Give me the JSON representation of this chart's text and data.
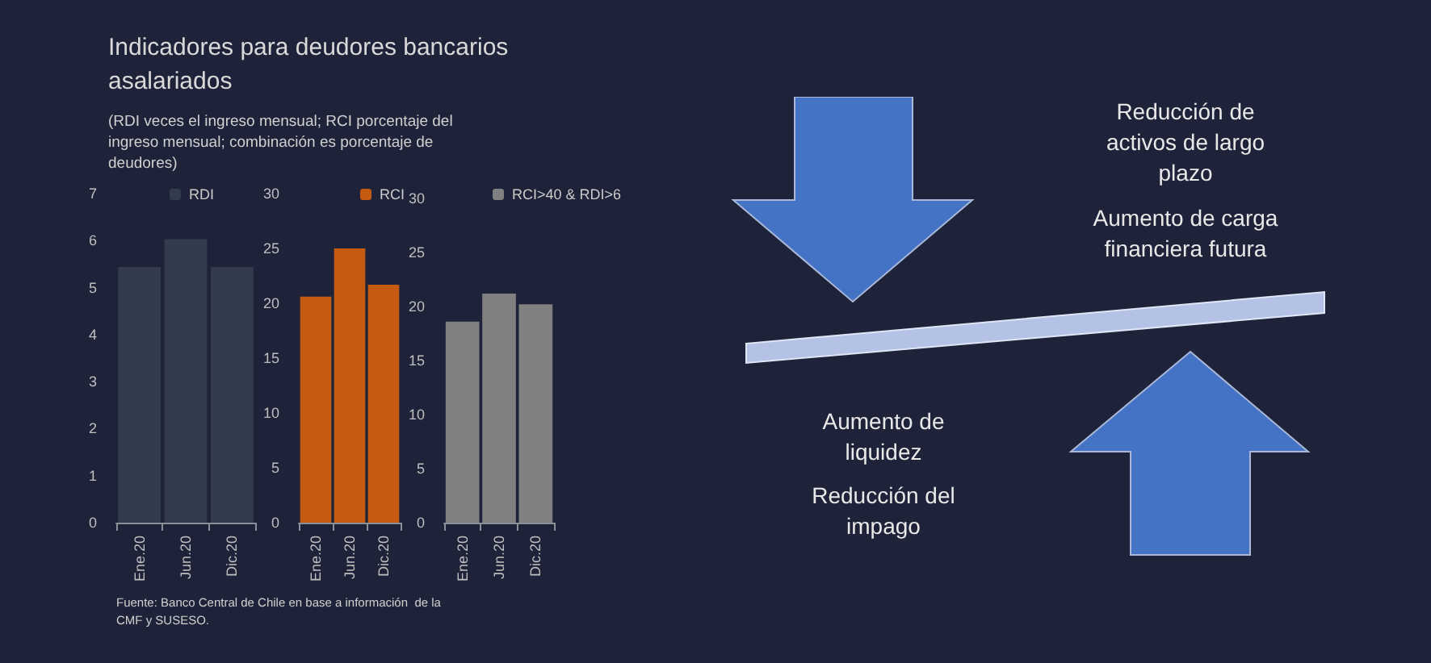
{
  "chart_data": [
    {
      "type": "bar",
      "title": "Indicadores para deudores bancarios asalariados",
      "subtitle": "(RDI veces el ingreso mensual; RCI porcentaje del ingreso mensual; combinación es porcentaje de deudores)",
      "categories": [
        "Ene.20",
        "Jun.20",
        "Dic.20"
      ],
      "series": [
        {
          "name": "RDI",
          "color": "#323c4c",
          "values": [
            5.44,
            6.03,
            5.44
          ]
        }
      ],
      "ylim": [
        0,
        7
      ],
      "yticks": [
        0,
        1,
        2,
        3,
        4,
        5,
        6,
        7
      ],
      "legend": "top",
      "annotations": [
        "Fuente: Banco Central de Chile en base a información  de la CMF y SUSESO."
      ]
    },
    {
      "type": "bar",
      "categories": [
        "Ene.20",
        "Jun.20",
        "Dic.20"
      ],
      "series": [
        {
          "name": "RCI",
          "color": "#c55a11",
          "values": [
            20.6,
            25.0,
            21.7
          ]
        }
      ],
      "ylim": [
        0,
        30
      ],
      "yticks": [
        0,
        5,
        10,
        15,
        20,
        25,
        30
      ],
      "legend": "top"
    },
    {
      "type": "bar",
      "categories": [
        "Ene.20",
        "Jun.20",
        "Dic.20"
      ],
      "series": [
        {
          "name": "RCI>40 & RDI>6",
          "color": "#808080",
          "values": [
            18.6,
            21.2,
            20.2
          ]
        }
      ],
      "ylim": [
        0,
        30
      ],
      "yticks": [
        0,
        5,
        10,
        15,
        20,
        25,
        30
      ],
      "legend": "top"
    },
    {
      "type": "other",
      "annotations": [
        "Reducción de activos de largo plazo",
        "Aumento de carga financiera futura",
        "Aumento de liquidez",
        "Reducción del impago"
      ]
    }
  ]
}
